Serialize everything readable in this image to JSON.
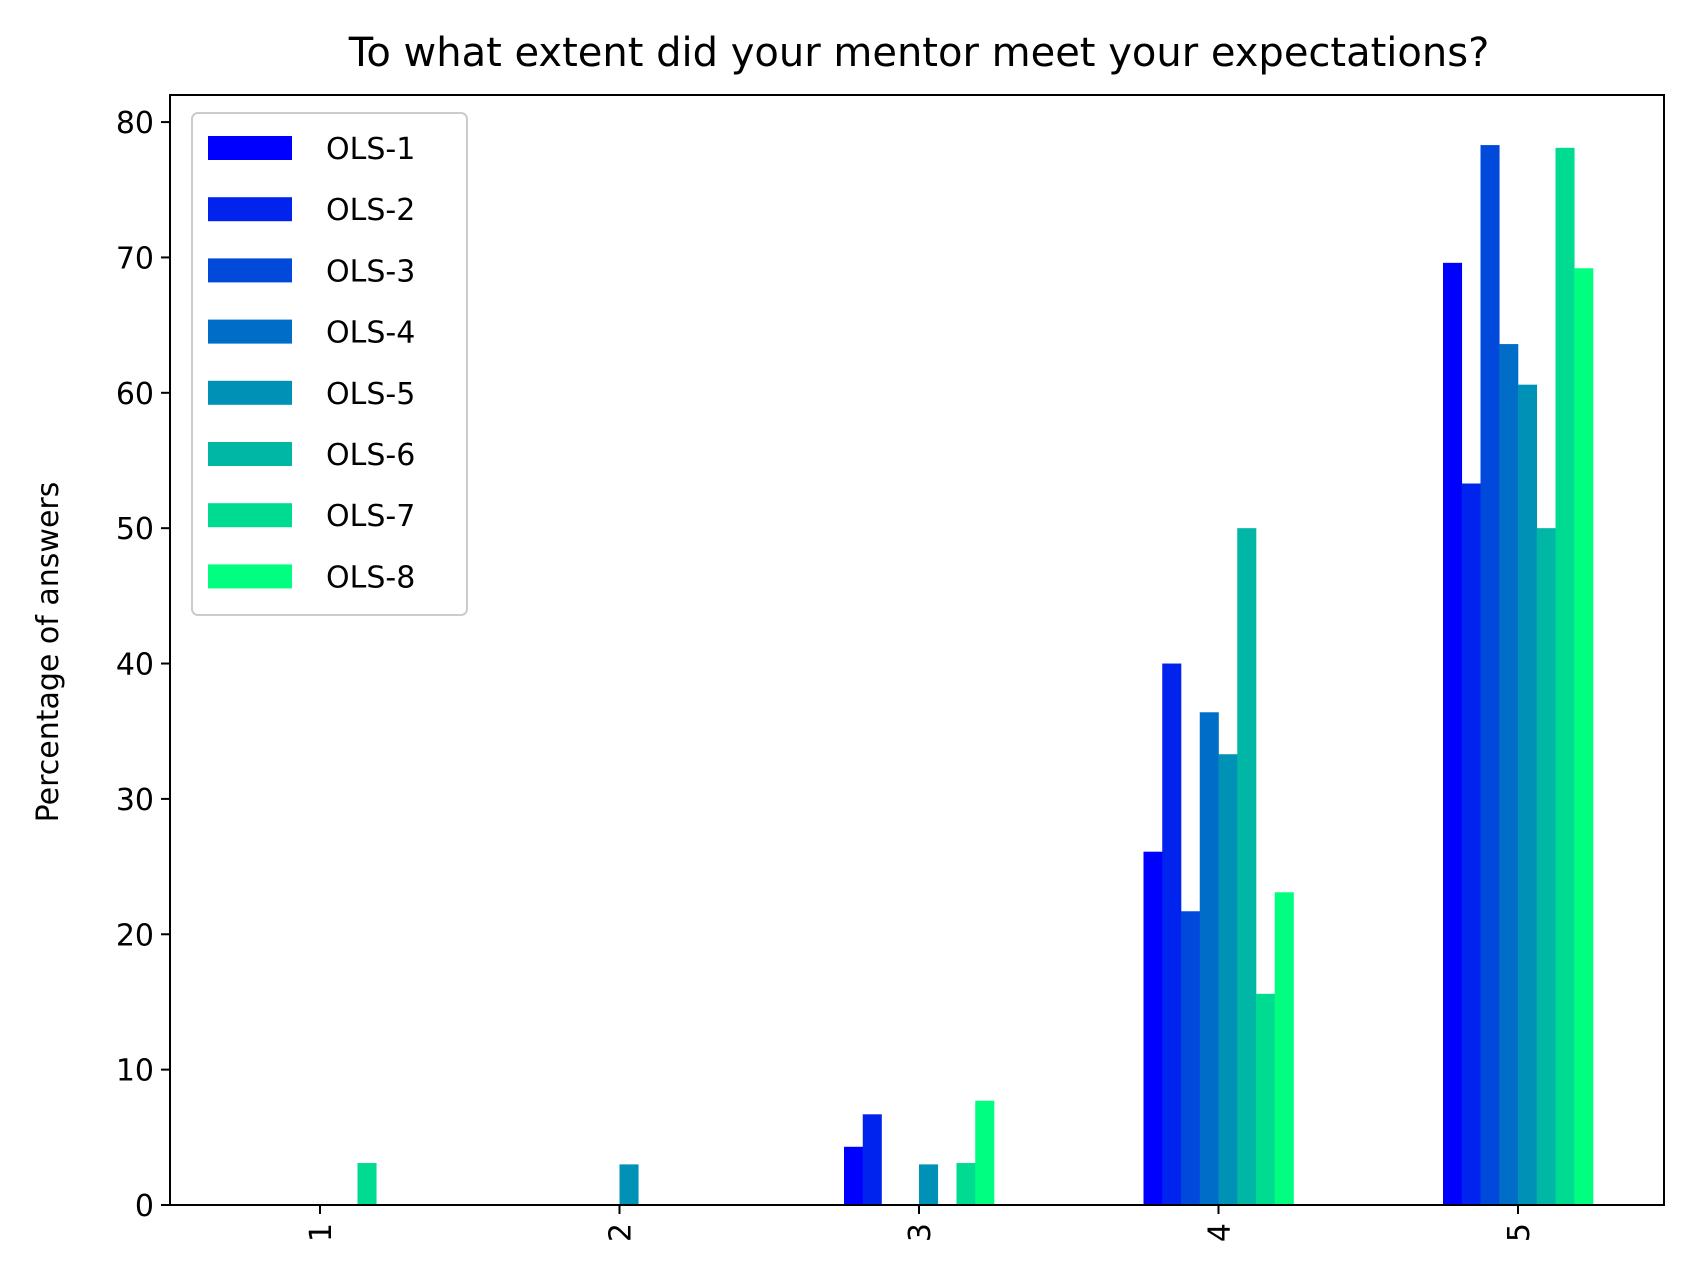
{
  "chart_data": {
    "type": "bar",
    "title": "To what extent did your mentor meet your expectations?",
    "xlabel": "",
    "ylabel": "Percentage of answers",
    "categories": [
      "1",
      "2",
      "3",
      "4",
      "5"
    ],
    "ylim": [
      0,
      82
    ],
    "yticks": [
      0,
      10,
      20,
      30,
      40,
      50,
      60,
      70,
      80
    ],
    "grid": false,
    "legend_position": "top-left",
    "series": [
      {
        "name": "OLS-1",
        "color": "#0000ff",
        "values": [
          0,
          0,
          4.3,
          26.1,
          69.6
        ]
      },
      {
        "name": "OLS-2",
        "color": "#0024ed",
        "values": [
          0,
          0,
          6.7,
          40.0,
          53.3
        ]
      },
      {
        "name": "OLS-3",
        "color": "#0049db",
        "values": [
          0,
          0,
          0,
          21.7,
          78.3
        ]
      },
      {
        "name": "OLS-4",
        "color": "#006dc9",
        "values": [
          0,
          0,
          0,
          36.4,
          63.6
        ]
      },
      {
        "name": "OLS-5",
        "color": "#0092b6",
        "values": [
          0,
          3.0,
          3.0,
          33.3,
          60.6
        ]
      },
      {
        "name": "OLS-6",
        "color": "#00b6a4",
        "values": [
          0,
          0,
          0,
          50.0,
          50.0
        ]
      },
      {
        "name": "OLS-7",
        "color": "#00db92",
        "values": [
          3.1,
          0,
          3.1,
          15.6,
          78.1
        ]
      },
      {
        "name": "OLS-8",
        "color": "#00ff80",
        "values": [
          0,
          0,
          7.7,
          23.1,
          69.2
        ]
      }
    ]
  }
}
